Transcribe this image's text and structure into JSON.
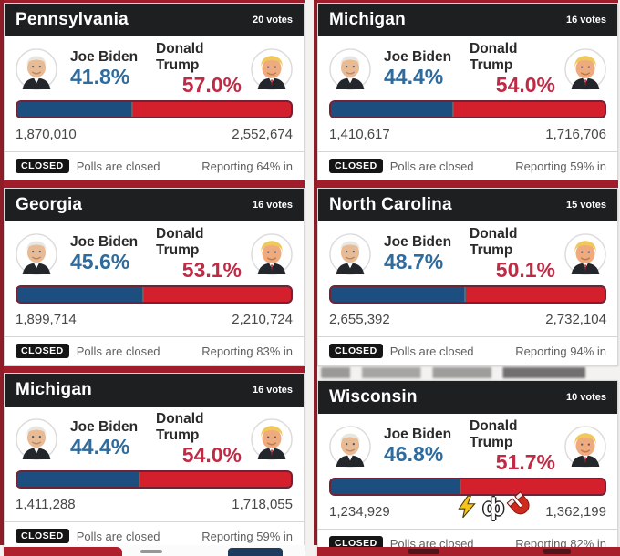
{
  "labels": {
    "closed_badge": "CLOSED",
    "closed_text": "Polls are closed"
  },
  "candidates": {
    "biden": "Joe Biden",
    "trump": "Donald Trump"
  },
  "colors": {
    "biden_percent": "#2f6b9d",
    "trump_percent": "#bf2b45",
    "bar_blue": "#1d4e80",
    "bar_red": "#d41f2d",
    "header_bg": "#1e1f21",
    "accent_maroon": "#9e1e2a"
  },
  "watermark": {
    "phi": "ф",
    "icons": [
      "lightning-icon",
      "phi-icon",
      "magnet-icon"
    ]
  },
  "cards": [
    {
      "state": "Pennsylvania",
      "votes_label": "20 votes",
      "biden_pct": "41.8%",
      "trump_pct": "57.0%",
      "biden_votes": "1,870,010",
      "trump_votes": "2,552,674",
      "reporting": "Reporting 64% in",
      "bar_biden_pct": 42.3
    },
    {
      "state": "Michigan",
      "votes_label": "16 votes",
      "biden_pct": "44.4%",
      "trump_pct": "54.0%",
      "biden_votes": "1,410,617",
      "trump_votes": "1,716,706",
      "reporting": "Reporting 59% in",
      "bar_biden_pct": 45.1
    },
    {
      "state": "Georgia",
      "votes_label": "16 votes",
      "biden_pct": "45.6%",
      "trump_pct": "53.1%",
      "biden_votes": "1,899,714",
      "trump_votes": "2,210,724",
      "reporting": "Reporting 83% in",
      "bar_biden_pct": 46.2
    },
    {
      "state": "North Carolina",
      "votes_label": "15 votes",
      "biden_pct": "48.7%",
      "trump_pct": "50.1%",
      "biden_votes": "2,655,392",
      "trump_votes": "2,732,104",
      "reporting": "Reporting 94% in",
      "bar_biden_pct": 49.3
    },
    {
      "state": "Michigan",
      "votes_label": "16 votes",
      "biden_pct": "44.4%",
      "trump_pct": "54.0%",
      "biden_votes": "1,411,288",
      "trump_votes": "1,718,055",
      "reporting": "Reporting 59% in",
      "bar_biden_pct": 45.1
    },
    {
      "state": "Wisconsin",
      "votes_label": "10 votes",
      "biden_pct": "46.8%",
      "trump_pct": "51.7%",
      "biden_votes": "1,234,929",
      "trump_votes": "1,362,199",
      "reporting": "Reporting 82% in",
      "bar_biden_pct": 47.5
    }
  ]
}
